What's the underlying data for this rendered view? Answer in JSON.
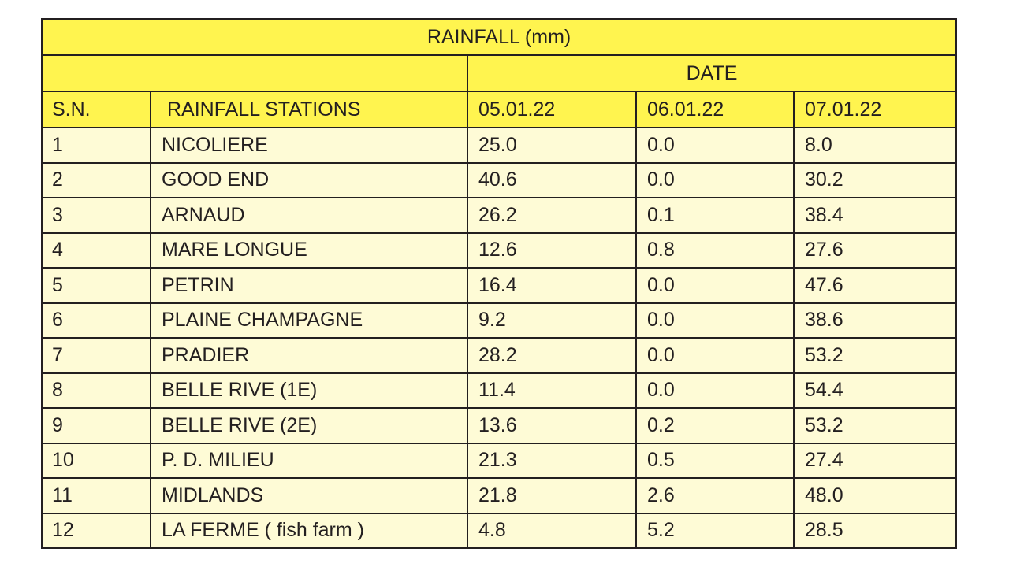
{
  "title": "RAINFALL (mm)",
  "date_group_label": "DATE",
  "headers": {
    "sn": "S.N.",
    "station": "RAINFALL STATIONS",
    "dates": [
      "05.01.22",
      "06.01.22",
      "07.01.22"
    ]
  },
  "rows": [
    {
      "sn": "1",
      "station": "NICOLIERE",
      "values": [
        "25.0",
        "0.0",
        "8.0"
      ]
    },
    {
      "sn": "2",
      "station": "GOOD END",
      "values": [
        "40.6",
        "0.0",
        "30.2"
      ]
    },
    {
      "sn": "3",
      "station": "ARNAUD",
      "values": [
        "26.2",
        "0.1",
        "38.4"
      ]
    },
    {
      "sn": "4",
      "station": "MARE LONGUE",
      "values": [
        "12.6",
        "0.8",
        "27.6"
      ]
    },
    {
      "sn": "5",
      "station": "PETRIN",
      "values": [
        "16.4",
        "0.0",
        "47.6"
      ]
    },
    {
      "sn": "6",
      "station": "PLAINE CHAMPAGNE",
      "values": [
        "9.2",
        "0.0",
        "38.6"
      ]
    },
    {
      "sn": "7",
      "station": "PRADIER",
      "values": [
        "28.2",
        "0.0",
        "53.2"
      ]
    },
    {
      "sn": "8",
      "station": "BELLE RIVE (1E)",
      "values": [
        "11.4",
        "0.0",
        "54.4"
      ]
    },
    {
      "sn": "9",
      "station": "BELLE RIVE (2E)",
      "values": [
        "13.6",
        "0.2",
        "53.2"
      ]
    },
    {
      "sn": "10",
      "station": "P. D. MILIEU",
      "values": [
        "21.3",
        "0.5",
        "27.4"
      ]
    },
    {
      "sn": "11",
      "station": "MIDLANDS",
      "values": [
        "21.8",
        "2.6",
        "48.0"
      ]
    },
    {
      "sn": "12",
      "station": "LA FERME ( fish farm )",
      "values": [
        "4.8",
        "5.2",
        "28.5"
      ]
    }
  ],
  "colors": {
    "header_fill": "#fff44f",
    "body_fill": "#fefbd6",
    "border": "#231f20",
    "text": "#231f20"
  }
}
